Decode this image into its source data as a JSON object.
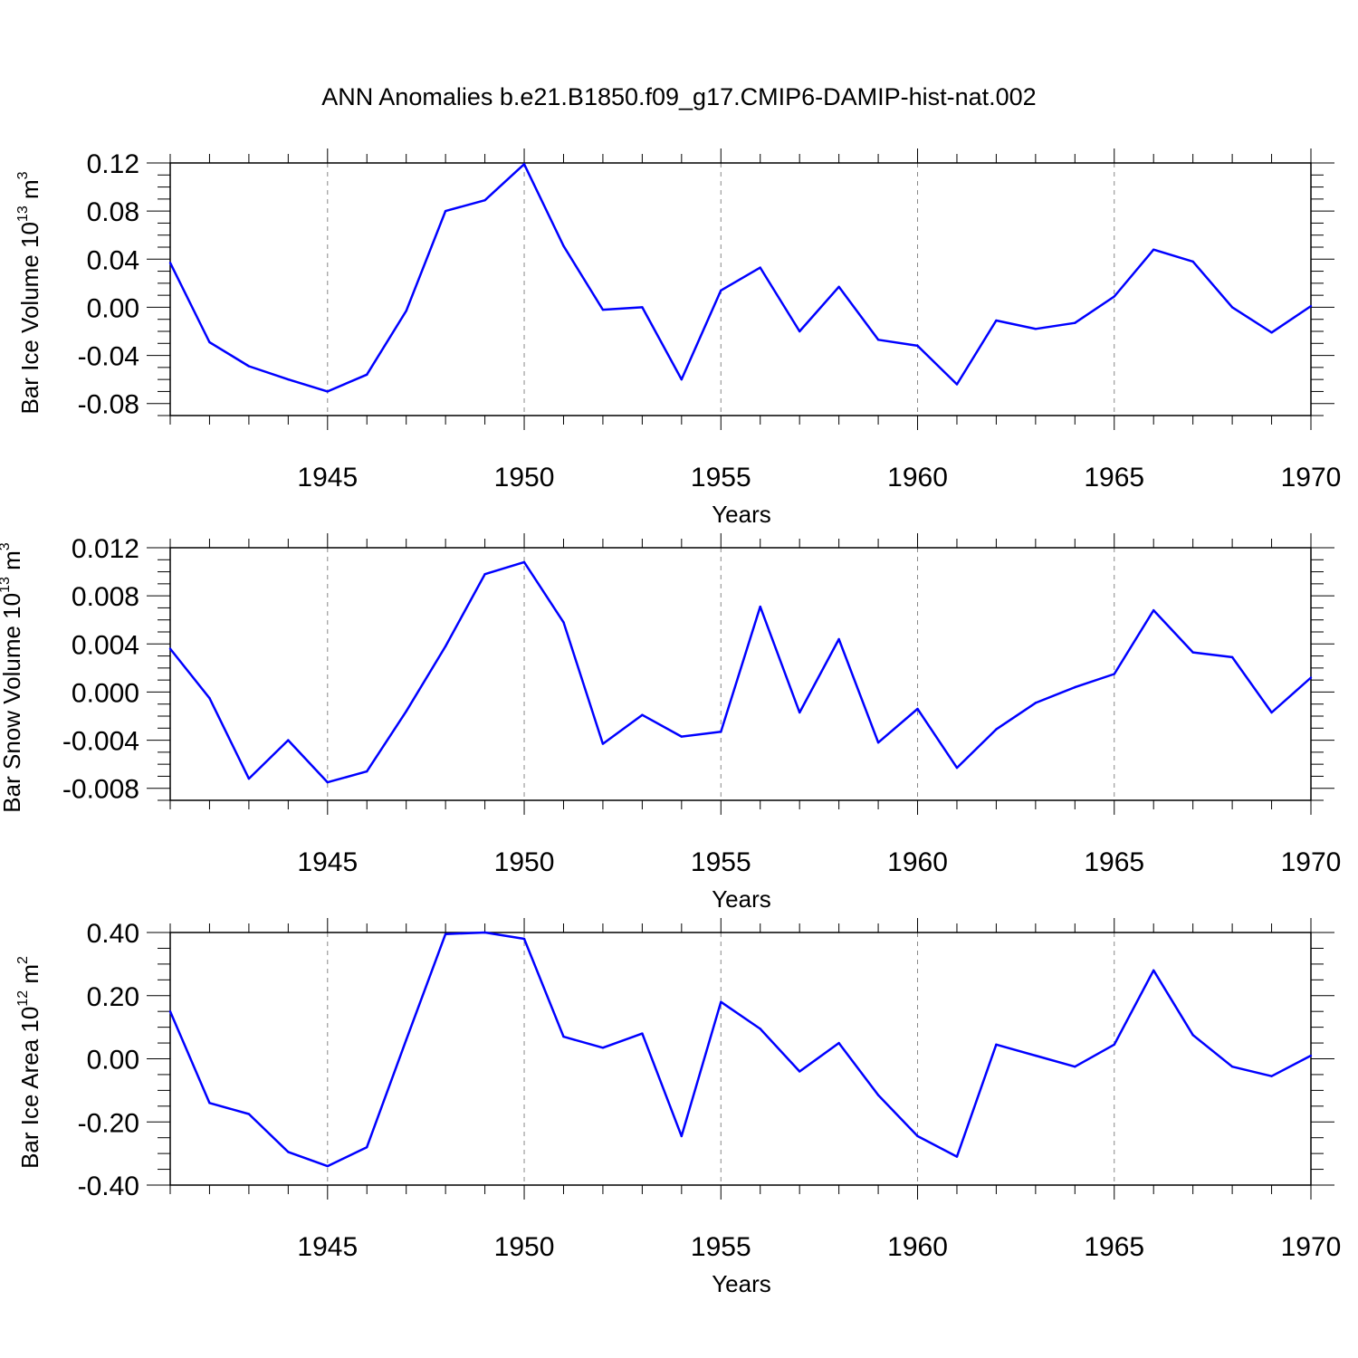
{
  "title": "ANN Anomalies b.e21.B1850.f09_g17.CMIP6-DAMIP-hist-nat.002",
  "colors": {
    "series": "#0000ff",
    "axes": "#000000",
    "grid": "#888888"
  },
  "chart_data": [
    {
      "type": "line",
      "ylabel": {
        "text": "Bar Ice Volume 10",
        "sup": "13",
        "unit": " m",
        "unit_sup": "3"
      },
      "xlabel": "Years",
      "xlim": [
        1941,
        1970
      ],
      "ylim": [
        -0.09,
        0.12
      ],
      "x_ticks": [
        1945,
        1950,
        1955,
        1960,
        1965,
        1970
      ],
      "y_ticks": [
        -0.08,
        -0.04,
        0.0,
        0.04,
        0.08,
        0.12
      ],
      "y_tick_labels": [
        "-0.08",
        "-0.04",
        "0.00",
        "0.04",
        "0.08",
        "0.12"
      ],
      "grid": "vertical dashed at major x ticks",
      "x": [
        1941,
        1942,
        1943,
        1944,
        1945,
        1946,
        1947,
        1948,
        1949,
        1950,
        1951,
        1952,
        1953,
        1954,
        1955,
        1956,
        1957,
        1958,
        1959,
        1960,
        1961,
        1962,
        1963,
        1964,
        1965,
        1966,
        1967,
        1968,
        1969,
        1970
      ],
      "values": [
        0.037,
        -0.029,
        -0.049,
        -0.06,
        -0.07,
        -0.056,
        -0.003,
        0.08,
        0.089,
        0.119,
        0.051,
        -0.002,
        0.0,
        -0.06,
        0.014,
        0.033,
        -0.02,
        0.017,
        -0.027,
        -0.032,
        -0.064,
        -0.011,
        -0.018,
        -0.013,
        0.009,
        0.048,
        0.038,
        0.0,
        -0.021,
        0.001
      ]
    },
    {
      "type": "line",
      "ylabel": {
        "text": "Bar Snow Volume 10",
        "sup": "13",
        "unit": " m",
        "unit_sup": "3"
      },
      "xlabel": "Years",
      "xlim": [
        1941,
        1970
      ],
      "ylim": [
        -0.009,
        0.012
      ],
      "x_ticks": [
        1945,
        1950,
        1955,
        1960,
        1965,
        1970
      ],
      "y_ticks": [
        -0.008,
        -0.004,
        0.0,
        0.004,
        0.008,
        0.012
      ],
      "y_tick_labels": [
        "-0.008",
        "-0.004",
        "0.000",
        "0.004",
        "0.008",
        "0.012"
      ],
      "grid": "vertical dashed at major x ticks",
      "x": [
        1941,
        1942,
        1943,
        1944,
        1945,
        1946,
        1947,
        1948,
        1949,
        1950,
        1951,
        1952,
        1953,
        1954,
        1955,
        1956,
        1957,
        1958,
        1959,
        1960,
        1961,
        1962,
        1963,
        1964,
        1965,
        1966,
        1967,
        1968,
        1969,
        1970
      ],
      "values": [
        0.0036,
        -0.0005,
        -0.0072,
        -0.004,
        -0.0075,
        -0.0066,
        -0.0016,
        0.0038,
        0.0098,
        0.0108,
        0.0058,
        -0.0043,
        -0.0019,
        -0.0037,
        -0.0033,
        0.0071,
        -0.0017,
        0.0044,
        -0.0042,
        -0.0014,
        -0.0063,
        -0.0031,
        -0.0009,
        0.0004,
        0.0015,
        0.0068,
        0.0033,
        0.0029,
        -0.0017,
        0.0012
      ]
    },
    {
      "type": "line",
      "ylabel": {
        "text": "Bar Ice Area 10",
        "sup": "12",
        "unit": " m",
        "unit_sup": "2"
      },
      "xlabel": "Years",
      "xlim": [
        1941,
        1970
      ],
      "ylim": [
        -0.4,
        0.4
      ],
      "x_ticks": [
        1945,
        1950,
        1955,
        1960,
        1965,
        1970
      ],
      "y_ticks": [
        -0.4,
        -0.2,
        0.0,
        0.2,
        0.4
      ],
      "y_tick_labels": [
        "-0.40",
        "-0.20",
        "0.00",
        "0.20",
        "0.40"
      ],
      "grid": "vertical dashed at major x ticks",
      "x": [
        1941,
        1942,
        1943,
        1944,
        1945,
        1946,
        1947,
        1948,
        1949,
        1950,
        1951,
        1952,
        1953,
        1954,
        1955,
        1956,
        1957,
        1958,
        1959,
        1960,
        1961,
        1962,
        1963,
        1964,
        1965,
        1966,
        1967,
        1968,
        1969,
        1970
      ],
      "values": [
        0.15,
        -0.14,
        -0.175,
        -0.295,
        -0.34,
        -0.28,
        0.06,
        0.395,
        0.4,
        0.38,
        0.07,
        0.035,
        0.08,
        -0.245,
        0.18,
        0.095,
        -0.04,
        0.05,
        -0.115,
        -0.245,
        -0.31,
        0.045,
        0.01,
        -0.025,
        0.045,
        0.28,
        0.075,
        -0.025,
        -0.055,
        0.01
      ]
    }
  ]
}
